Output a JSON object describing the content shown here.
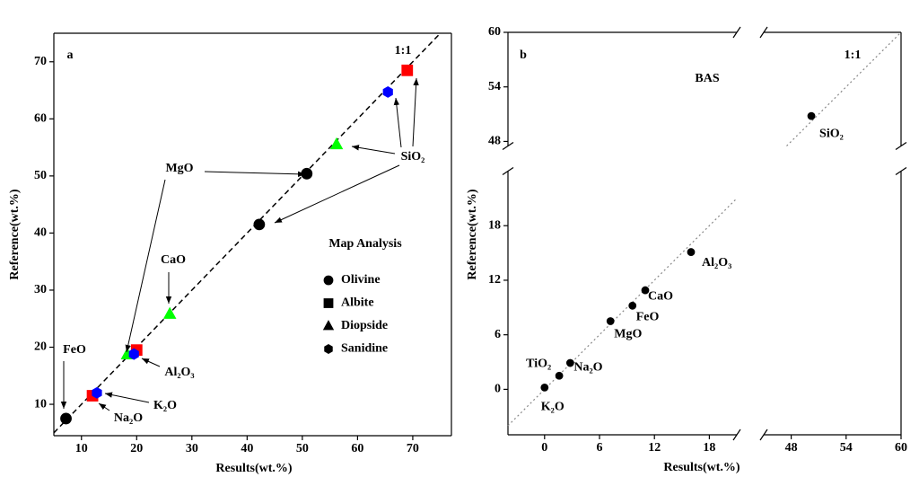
{
  "chart_data": [
    {
      "type": "scatter",
      "panel_label": "a",
      "x_label": "Results(wt.%)",
      "y_label": "Reference(wt.%)",
      "xlim": [
        5,
        77
      ],
      "ylim": [
        4.5,
        75
      ],
      "xticks": [
        10,
        20,
        30,
        40,
        50,
        60,
        70
      ],
      "yticks": [
        10,
        20,
        30,
        40,
        50,
        60,
        70
      ],
      "reference_line": {
        "style": "dashed",
        "color": "#000000"
      },
      "legend_title": "Map Analysis",
      "legend_marker_color": "#000000",
      "series": [
        {
          "name": "Olivine",
          "marker": "circle",
          "color": "#000000",
          "x": [
            7.2,
            42.2,
            50.8
          ],
          "values": [
            7.5,
            41.5,
            50.4
          ]
        },
        {
          "name": "Albite",
          "marker": "square",
          "color": "#ff0000",
          "x": [
            12,
            20,
            69
          ],
          "values": [
            11.5,
            19.5,
            68.5
          ]
        },
        {
          "name": "Diopside",
          "marker": "triangle",
          "color": "#00ff00",
          "x": [
            18.3,
            26,
            56.2
          ],
          "values": [
            18.7,
            25.8,
            55.5
          ]
        },
        {
          "name": "Sanidine",
          "marker": "hexagon",
          "color": "#0000ff",
          "x": [
            12.8,
            19.5,
            65.5
          ],
          "values": [
            12,
            18.8,
            64.7
          ]
        }
      ],
      "annotations": [
        "1:1",
        "MgO",
        "SiO₂",
        "CaO",
        "FeO",
        "Al₂O₃",
        "K₂O",
        "Na₂O"
      ]
    },
    {
      "type": "scatter",
      "panel_label": "b",
      "title": "BAS",
      "x_label": "Results(wt.%)",
      "y_label": "Reference(wt.%)",
      "xlim": [
        -4,
        60
      ],
      "x_break": [
        21,
        45
      ],
      "ylim": [
        -5,
        60
      ],
      "y_break": [
        24,
        47.5
      ],
      "xticks": [
        0,
        6,
        12,
        18,
        48,
        54,
        60
      ],
      "yticks": [
        0,
        6,
        12,
        18,
        48,
        54,
        60
      ],
      "reference_line": {
        "style": "dotted",
        "color": "#888888"
      },
      "color": "#000000",
      "categories": [
        "K₂O",
        "TiO₂",
        "Na₂O",
        "MgO",
        "FeO",
        "CaO",
        "Al₂O₃",
        "SiO₂"
      ],
      "x": [
        0,
        1.6,
        2.8,
        7.2,
        9.6,
        11,
        16,
        50.2
      ],
      "values": [
        0.2,
        1.5,
        2.9,
        7.5,
        9.2,
        10.9,
        15.1,
        50.8
      ],
      "annotations": [
        "1:1"
      ]
    }
  ]
}
